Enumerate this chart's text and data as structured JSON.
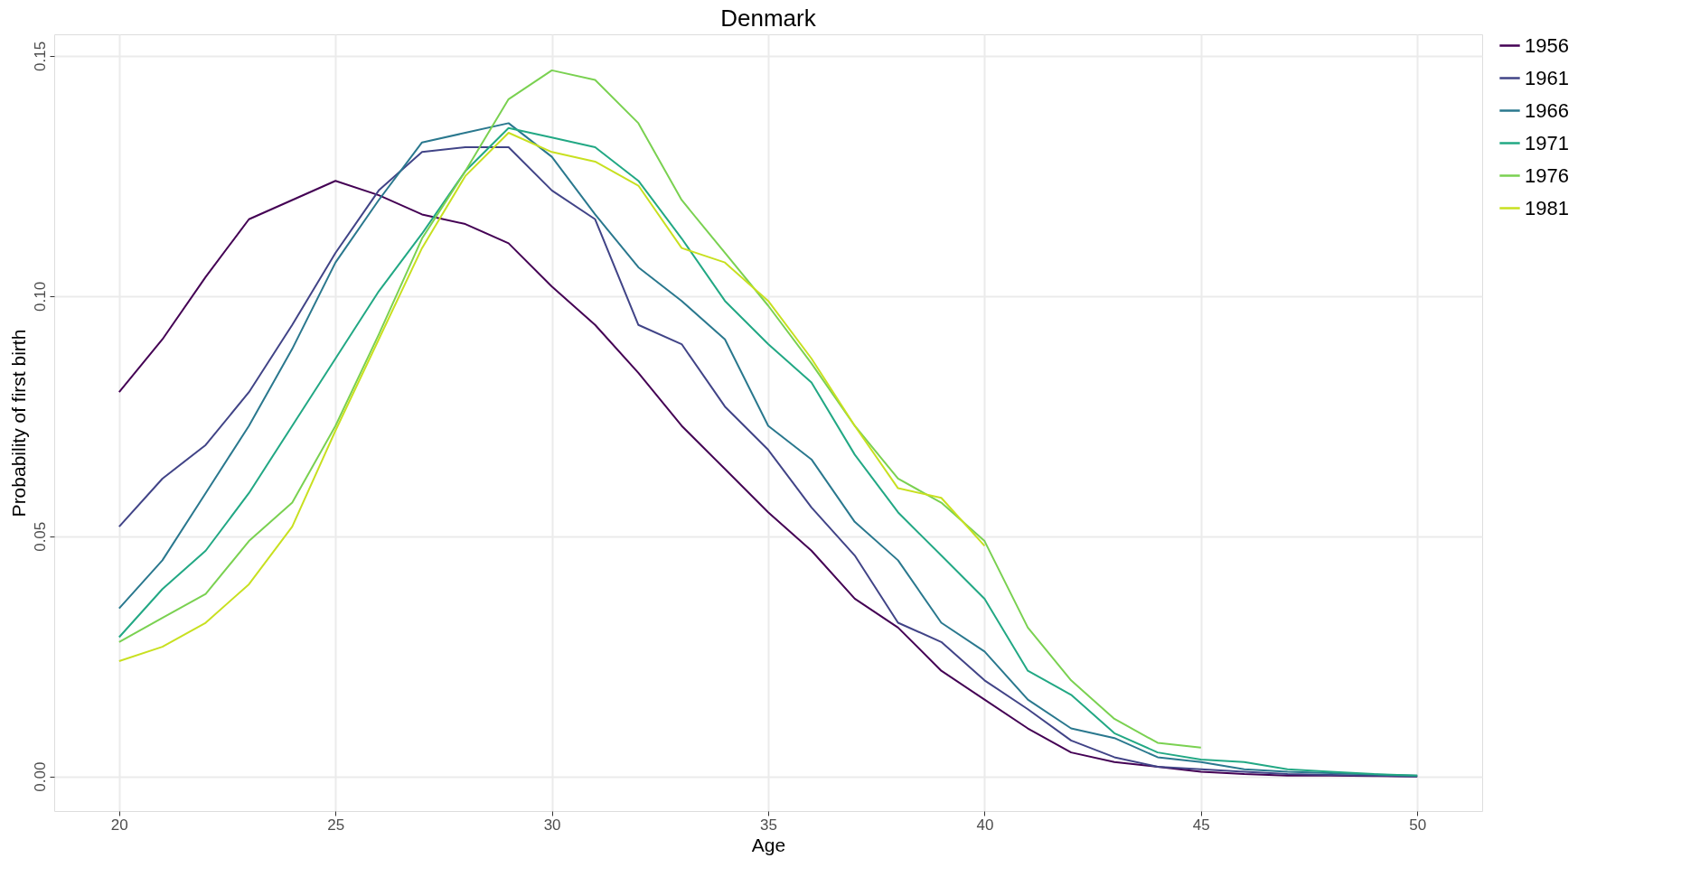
{
  "chart_data": {
    "type": "line",
    "title": "Denmark",
    "xlabel": "Age",
    "ylabel": "Probability of first birth",
    "xlim": [
      18.5,
      51.5
    ],
    "ylim": [
      -0.0072,
      0.1545
    ],
    "xticks": [
      20,
      25,
      30,
      35,
      40,
      45,
      50
    ],
    "yticks": [
      {
        "value": 0,
        "label": "0.00"
      },
      {
        "value": 0.05,
        "label": "0.05"
      },
      {
        "value": 0.1,
        "label": "0.10"
      },
      {
        "value": 0.15,
        "label": "0.15"
      }
    ],
    "grid": true,
    "legend": "right",
    "marker": "none",
    "line_style": "solid",
    "series": [
      {
        "name": "1956",
        "color": "#440154",
        "x": [
          20,
          21,
          22,
          23,
          24,
          25,
          26,
          27,
          28,
          29,
          30,
          31,
          32,
          33,
          34,
          35,
          36,
          37,
          38,
          39,
          40,
          41,
          42,
          43,
          44,
          45,
          46,
          47,
          48,
          49,
          50
        ],
        "values": [
          0.08,
          0.091,
          0.104,
          0.116,
          0.12,
          0.124,
          0.121,
          0.117,
          0.115,
          0.111,
          0.102,
          0.094,
          0.084,
          0.073,
          0.064,
          0.055,
          0.047,
          0.037,
          0.031,
          0.022,
          0.016,
          0.01,
          0.005,
          0.003,
          0.002,
          0.001,
          0.0005,
          0.0002,
          0.0002,
          0.0001,
          0.0
        ]
      },
      {
        "name": "1961",
        "color": "#414487",
        "x": [
          20,
          21,
          22,
          23,
          24,
          25,
          26,
          27,
          28,
          29,
          30,
          31,
          32,
          33,
          34,
          35,
          36,
          37,
          38,
          39,
          40,
          41,
          42,
          43,
          44,
          45,
          46,
          47,
          48,
          49,
          50
        ],
        "values": [
          0.052,
          0.062,
          0.069,
          0.08,
          0.094,
          0.109,
          0.122,
          0.13,
          0.131,
          0.131,
          0.122,
          0.116,
          0.094,
          0.09,
          0.077,
          0.068,
          0.056,
          0.046,
          0.032,
          0.028,
          0.02,
          0.014,
          0.0075,
          0.004,
          0.002,
          0.0015,
          0.001,
          0.0005,
          0.0003,
          0.0002,
          0.0
        ]
      },
      {
        "name": "1966",
        "color": "#2a788e",
        "x": [
          20,
          21,
          22,
          23,
          24,
          25,
          26,
          27,
          28,
          29,
          30,
          31,
          32,
          33,
          34,
          35,
          36,
          37,
          38,
          39,
          40,
          41,
          42,
          43,
          44,
          45,
          46,
          47,
          48,
          49,
          50
        ],
        "values": [
          0.035,
          0.045,
          0.059,
          0.073,
          0.089,
          0.107,
          0.12,
          0.132,
          0.134,
          0.136,
          0.129,
          0.117,
          0.106,
          0.099,
          0.091,
          0.073,
          0.066,
          0.053,
          0.045,
          0.032,
          0.026,
          0.016,
          0.01,
          0.008,
          0.004,
          0.003,
          0.0015,
          0.001,
          0.0007,
          0.0004,
          0.0002
        ]
      },
      {
        "name": "1971",
        "color": "#22a884",
        "x": [
          20,
          21,
          22,
          23,
          24,
          25,
          26,
          27,
          28,
          29,
          30,
          31,
          32,
          33,
          34,
          35,
          36,
          37,
          38,
          39,
          40,
          41,
          42,
          43,
          44,
          45,
          46,
          47,
          48,
          49,
          50
        ],
        "values": [
          0.029,
          0.039,
          0.047,
          0.059,
          0.073,
          0.087,
          0.101,
          0.113,
          0.126,
          0.135,
          0.133,
          0.131,
          0.124,
          0.112,
          0.099,
          0.09,
          0.082,
          0.067,
          0.055,
          0.046,
          0.037,
          0.022,
          0.017,
          0.009,
          0.005,
          0.0035,
          0.003,
          0.0015,
          0.001,
          0.0005,
          0.0002
        ]
      },
      {
        "name": "1976",
        "color": "#7ad151",
        "x": [
          20,
          21,
          22,
          23,
          24,
          25,
          26,
          27,
          28,
          29,
          30,
          31,
          32,
          33,
          34,
          35,
          36,
          37,
          38,
          39,
          40,
          41,
          42,
          43,
          44,
          45
        ],
        "values": [
          0.028,
          0.033,
          0.038,
          0.049,
          0.057,
          0.073,
          0.092,
          0.112,
          0.126,
          0.141,
          0.147,
          0.145,
          0.136,
          0.12,
          0.109,
          0.098,
          0.086,
          0.073,
          0.062,
          0.057,
          0.049,
          0.031,
          0.02,
          0.012,
          0.007,
          0.006
        ]
      },
      {
        "name": "1981",
        "color": "#c8e020",
        "x": [
          20,
          21,
          22,
          23,
          24,
          25,
          26,
          27,
          28,
          29,
          30,
          31,
          32,
          33,
          34,
          35,
          36,
          37,
          38,
          39,
          40
        ],
        "values": [
          0.024,
          0.027,
          0.032,
          0.04,
          0.052,
          0.072,
          0.091,
          0.11,
          0.125,
          0.134,
          0.13,
          0.128,
          0.123,
          0.11,
          0.107,
          0.099,
          0.087,
          0.073,
          0.06,
          0.058,
          0.048
        ]
      }
    ]
  }
}
